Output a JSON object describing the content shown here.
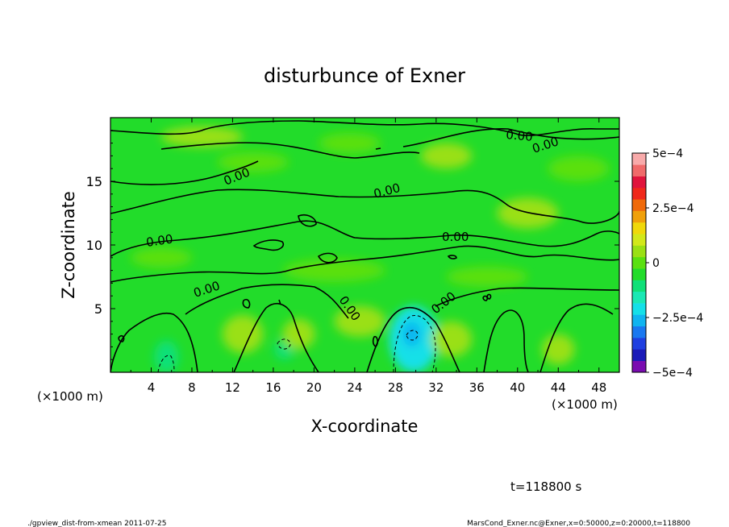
{
  "chart_data": {
    "type": "heatmap",
    "title": "disturbunce of Exner",
    "xlabel": "X-coordinate",
    "ylabel": "Z-coordinate",
    "x_unit_left": "(×1000 m)",
    "x_unit_right": "(×1000 m)",
    "xlim": [
      0,
      50
    ],
    "ylim": [
      0,
      20
    ],
    "x_ticks": [
      4,
      8,
      12,
      16,
      20,
      24,
      28,
      32,
      36,
      40,
      44,
      48
    ],
    "y_ticks": [
      5,
      10,
      15
    ],
    "contour_label": "0.00",
    "colorbar": {
      "range": [
        -0.0005,
        0.0005
      ],
      "labels": [
        {
          "value": 0.0005,
          "text": "5e−4"
        },
        {
          "value": 0.00025,
          "text": "2.5e−4"
        },
        {
          "value": 0,
          "text": "0"
        },
        {
          "value": -0.00025,
          "text": "−2.5e−4"
        },
        {
          "value": -0.0005,
          "text": "−5e−4"
        }
      ],
      "colors": [
        "#7a0cb0",
        "#1a1ab8",
        "#1f3fe0",
        "#1a78f0",
        "#10b4f0",
        "#14e0e8",
        "#1ae8b4",
        "#10e078",
        "#22dc2a",
        "#5ae010",
        "#9ae014",
        "#d2e81a",
        "#f0d80a",
        "#f0a00a",
        "#f06a0a",
        "#f0281a",
        "#e0143c",
        "#f06a6a",
        "#f8aaaa"
      ]
    },
    "blobs": [
      {
        "x": 29.8,
        "z": 2.6,
        "rx": 2.4,
        "rz": 2.6,
        "value": -0.00022
      },
      {
        "x": 29.6,
        "z": 3.0,
        "rx": 0.9,
        "rz": 1.0,
        "value": -0.00028
      },
      {
        "x": 5.5,
        "z": 1.2,
        "rx": 1.2,
        "rz": 1.3,
        "value": -0.00012
      },
      {
        "x": 17.1,
        "z": 1.8,
        "rx": 1.0,
        "rz": 0.8,
        "value": -8e-05
      },
      {
        "x": 13.0,
        "z": 3.0,
        "rx": 2.0,
        "rz": 1.5,
        "value": 6e-05
      },
      {
        "x": 18.5,
        "z": 3.0,
        "rx": 1.6,
        "rz": 1.2,
        "value": 6e-05
      },
      {
        "x": 33.5,
        "z": 2.6,
        "rx": 2.0,
        "rz": 1.4,
        "value": 5e-05
      },
      {
        "x": 44.0,
        "z": 1.8,
        "rx": 1.6,
        "rz": 1.2,
        "value": 5e-05
      },
      {
        "x": 24.5,
        "z": 4.0,
        "rx": 2.5,
        "rz": 1.2,
        "value": 4e-05
      },
      {
        "x": 33.0,
        "z": 17.0,
        "rx": 2.5,
        "rz": 1.0,
        "value": 4e-05
      },
      {
        "x": 41.0,
        "z": 12.5,
        "rx": 3.0,
        "rz": 1.2,
        "value": 3e-05
      },
      {
        "x": 9.0,
        "z": 18.5,
        "rx": 4.0,
        "rz": 0.8,
        "value": 3e-05
      },
      {
        "x": 22.0,
        "z": 8.0,
        "rx": 5.0,
        "rz": 0.9,
        "value": -2e-05
      },
      {
        "x": 37.0,
        "z": 7.5,
        "rx": 4.0,
        "rz": 0.8,
        "value": -2e-05
      },
      {
        "x": 5.0,
        "z": 9.0,
        "rx": 3.0,
        "rz": 0.8,
        "value": -2e-05
      },
      {
        "x": 14.0,
        "z": 16.5,
        "rx": 3.5,
        "rz": 0.8,
        "value": -2e-05
      },
      {
        "x": 23.5,
        "z": 18.0,
        "rx": 3.0,
        "rz": 0.8,
        "value": -2e-05
      },
      {
        "x": 46.0,
        "z": 16.0,
        "rx": 3.0,
        "rz": 1.0,
        "value": 2e-05
      }
    ]
  },
  "footer": {
    "time": "t=118800 s",
    "left": "./gpview_dist-from-xmean  2011-07-25",
    "right": "MarsCond_Exner.nc@Exner,x=0:50000,z=0:20000,t=118800"
  }
}
